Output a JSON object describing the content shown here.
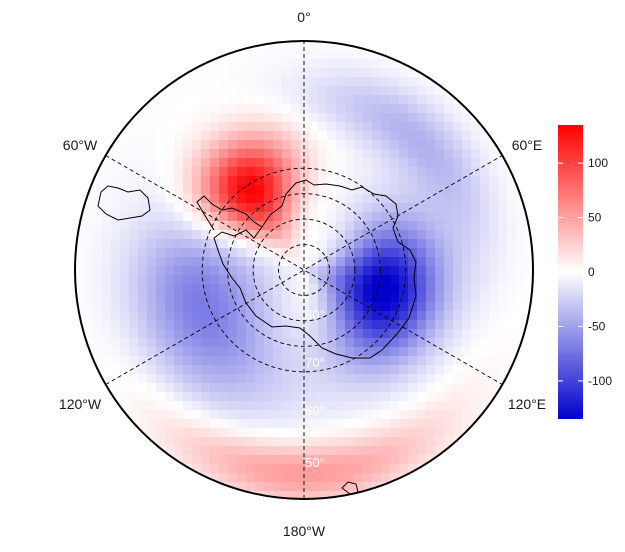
{
  "map": {
    "projection": "south-polar-stereographic",
    "colormap": [
      "#0000cc",
      "#ffffff",
      "#ff0000"
    ],
    "lon_labels": {
      "top": "0°",
      "upper_left": "60°W",
      "upper_right": "60°E",
      "lower_left": "120°W",
      "lower_right": "120°E",
      "bottom": "180°W"
    },
    "lat_labels": [
      "80°",
      "70°",
      "60°",
      "50°"
    ],
    "lat_circles": [
      80,
      70,
      60,
      50
    ],
    "meridians_deg": [
      0,
      60,
      120
    ]
  },
  "colorbar": {
    "min": -135,
    "max": 135,
    "ticks": [
      {
        "value": 100,
        "label": "100"
      },
      {
        "value": 50,
        "label": "50"
      },
      {
        "value": 0,
        "label": "0"
      },
      {
        "value": -50,
        "label": "-50"
      },
      {
        "value": -100,
        "label": "-100"
      }
    ]
  }
}
